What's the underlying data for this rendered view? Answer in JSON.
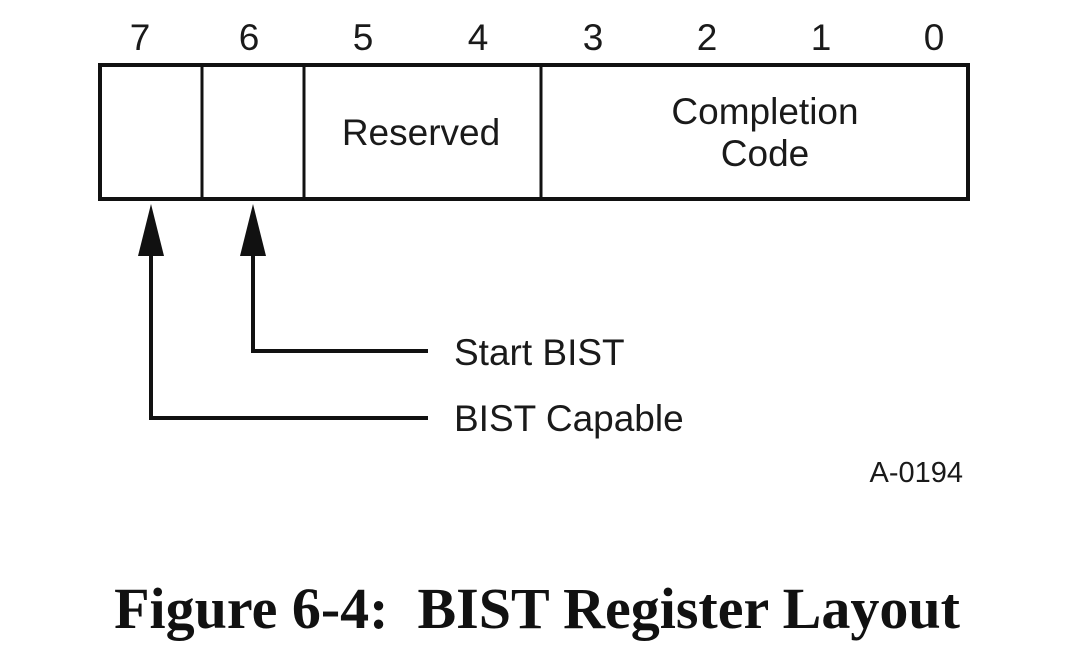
{
  "bit_numbers": [
    "7",
    "6",
    "5",
    "4",
    "3",
    "2",
    "1",
    "0"
  ],
  "fields": {
    "reserved": "Reserved",
    "completion_code_line1": "Completion",
    "completion_code_line2": "Code"
  },
  "callouts": {
    "start_bist": "Start BIST",
    "bist_capable": "BIST Capable"
  },
  "figure_id": "A-0194",
  "caption": "Figure 6-4:  BIST Register Layout"
}
